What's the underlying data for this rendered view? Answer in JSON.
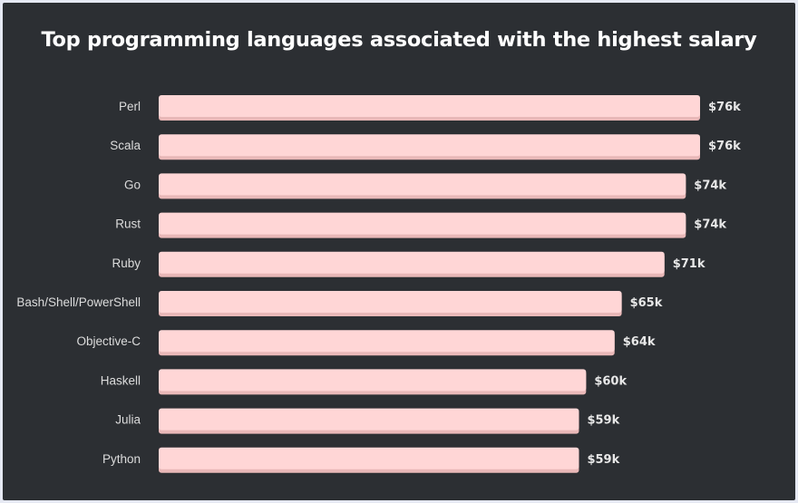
{
  "chart_data": {
    "type": "bar",
    "orientation": "horizontal",
    "title": "Top programming languages associated with the highest salary",
    "categories": [
      "Perl",
      "Scala",
      "Go",
      "Rust",
      "Ruby",
      "Bash/Shell/PowerShell",
      "Objective-C",
      "Haskell",
      "Julia",
      "Python"
    ],
    "values": [
      76,
      76,
      74,
      74,
      71,
      65,
      64,
      60,
      59,
      59
    ],
    "value_labels": [
      "$76k",
      "$76k",
      "$74k",
      "$74k",
      "$71k",
      "$65k",
      "$64k",
      "$60k",
      "$59k",
      "$59k"
    ],
    "unit": "k USD",
    "xlim": [
      0,
      76
    ],
    "grid": false,
    "legend": "none",
    "colors": {
      "bar": "#ffd6d6",
      "bar_shadow": "#e9b8b8",
      "background": "#2c2f33",
      "text": "#ffffff"
    }
  }
}
